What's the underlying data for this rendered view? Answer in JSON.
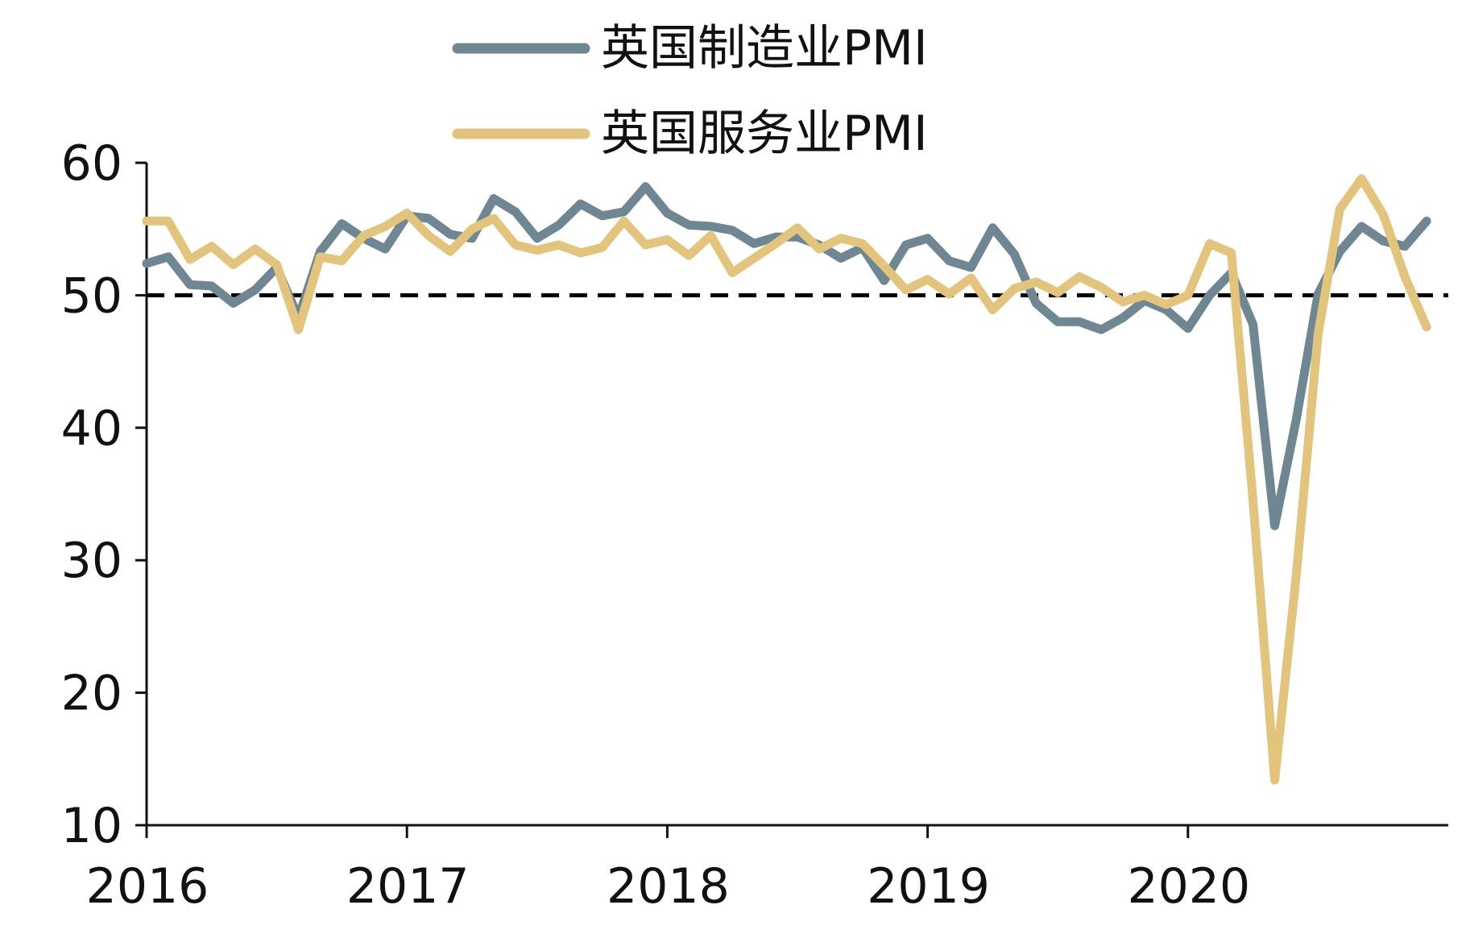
{
  "chart_data": {
    "type": "line",
    "title": "",
    "xlabel": "",
    "ylabel": "",
    "ylim": [
      10,
      60
    ],
    "yticks": [
      10,
      20,
      30,
      40,
      50,
      60
    ],
    "xticks": [
      "2016",
      "2017",
      "2018",
      "2019",
      "2020"
    ],
    "x_start": "2016-01",
    "x_end": "2020-12",
    "reference_line": {
      "value": 50,
      "style": "dashed",
      "color": "#000000"
    },
    "legend_position": "top",
    "series": [
      {
        "name": "英国制造业PMI",
        "color": "#6f8792",
        "values": [
          52.4,
          52.9,
          50.8,
          50.7,
          49.4,
          50.4,
          52.1,
          48.3,
          53.3,
          55.4,
          54.3,
          53.5,
          56.0,
          55.8,
          54.6,
          54.3,
          57.3,
          56.3,
          54.3,
          55.3,
          56.9,
          56.0,
          56.3,
          58.2,
          56.2,
          55.3,
          55.2,
          54.9,
          53.9,
          54.4,
          54.4,
          53.8,
          52.8,
          53.6,
          51.1,
          53.8,
          54.3,
          52.6,
          52.1,
          55.1,
          53.1,
          49.4,
          48.0,
          48.0,
          47.4,
          48.3,
          49.6,
          48.9,
          47.5,
          50.0,
          51.7,
          47.8,
          32.6,
          40.7,
          50.1,
          53.3,
          55.2,
          54.1,
          53.7,
          55.6
        ]
      },
      {
        "name": "英国服务业PMI",
        "color": "#e2c47c",
        "values": [
          55.6,
          55.6,
          52.7,
          53.7,
          52.3,
          53.5,
          52.3,
          47.4,
          52.9,
          52.6,
          54.5,
          55.2,
          56.2,
          54.5,
          53.3,
          55.0,
          55.8,
          53.8,
          53.4,
          53.8,
          53.2,
          53.6,
          55.6,
          53.8,
          54.2,
          53.0,
          54.5,
          51.7,
          52.8,
          53.9,
          55.1,
          53.5,
          54.3,
          53.9,
          52.2,
          50.4,
          51.2,
          50.1,
          51.3,
          48.9,
          50.5,
          51.0,
          50.2,
          51.4,
          50.6,
          49.5,
          50.0,
          49.3,
          50.0,
          53.9,
          53.2,
          34.5,
          13.4,
          29.0,
          47.1,
          56.5,
          58.8,
          56.1,
          51.4,
          47.6
        ]
      }
    ]
  }
}
